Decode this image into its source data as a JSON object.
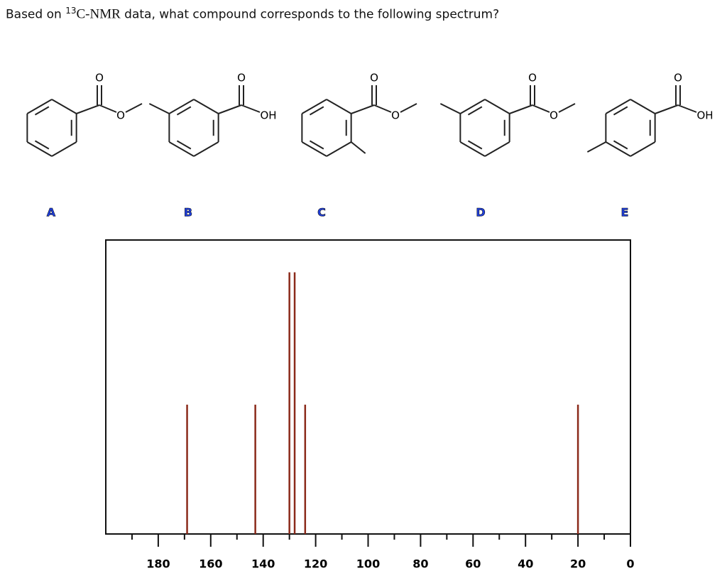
{
  "question": {
    "prefix": "Based on",
    "isotope": "13",
    "nucleus": "C-NMR",
    "suffix": "data, what compound corresponds to the following spectrum?"
  },
  "compounds": [
    {
      "label": "A",
      "carbonyl_oxygen": "O",
      "second_group": "O"
    },
    {
      "label": "B",
      "carbonyl_oxygen": "O",
      "second_group": "OH"
    },
    {
      "label": "C",
      "carbonyl_oxygen": "O",
      "second_group": "O"
    },
    {
      "label": "D",
      "carbonyl_oxygen": "O",
      "second_group": "O"
    },
    {
      "label": "E",
      "carbonyl_oxygen": "O",
      "second_group": "OH"
    }
  ],
  "chart_data": {
    "type": "stick",
    "x": [
      169,
      143,
      130,
      128,
      124,
      20
    ],
    "values": [
      0.44,
      0.44,
      0.89,
      0.89,
      0.44,
      0.44
    ],
    "color": "#8b2a1a",
    "xlim": [
      200,
      0
    ],
    "ylim": [
      0,
      1
    ],
    "xticks": [
      180,
      160,
      140,
      120,
      100,
      80,
      60,
      40,
      20,
      0
    ],
    "xminor_ticks": [
      190,
      170,
      150,
      130,
      110,
      90,
      70,
      50,
      30,
      10
    ]
  }
}
